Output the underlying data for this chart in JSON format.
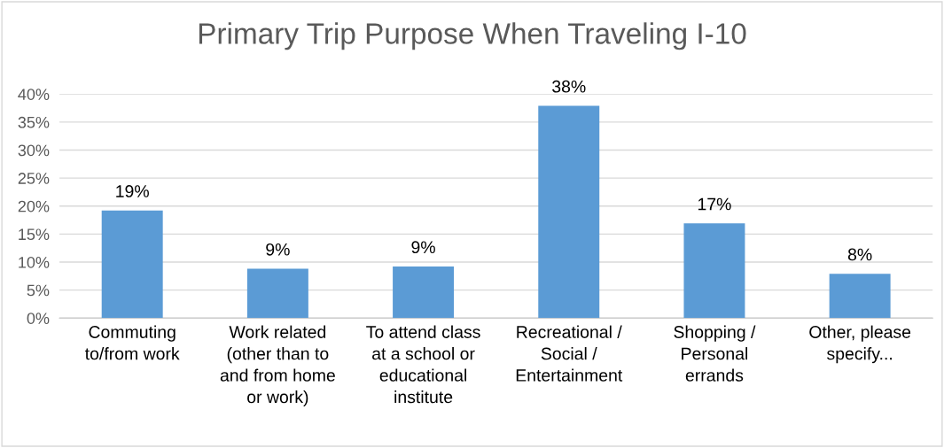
{
  "chart_data": {
    "type": "bar",
    "title": "Primary Trip Purpose When Traveling I-10",
    "categories": [
      "Commuting\nto/from work",
      "Work related\n(other than to\nand from home\nor work)",
      "To attend class\nat a school or\neducational\ninstitute",
      "Recreational /\nSocial /\nEntertainment",
      "Shopping /\nPersonal\nerrands",
      "Other, please\nspecify..."
    ],
    "values": [
      19.2,
      8.8,
      9.2,
      37.9,
      16.9,
      7.9
    ],
    "value_labels": [
      "19%",
      "9%",
      "9%",
      "38%",
      "17%",
      "8%"
    ],
    "color": "#5b9bd5",
    "ylim": [
      0,
      40
    ],
    "yticks": [
      {
        "value": 0,
        "label": "0%"
      },
      {
        "value": 5,
        "label": "5%"
      },
      {
        "value": 10,
        "label": "10%"
      },
      {
        "value": 15,
        "label": "15%"
      },
      {
        "value": 20,
        "label": "20%"
      },
      {
        "value": 25,
        "label": "25%"
      },
      {
        "value": 30,
        "label": "30%"
      },
      {
        "value": 35,
        "label": "35%"
      },
      {
        "value": 40,
        "label": "40%"
      }
    ],
    "grid": "y"
  }
}
